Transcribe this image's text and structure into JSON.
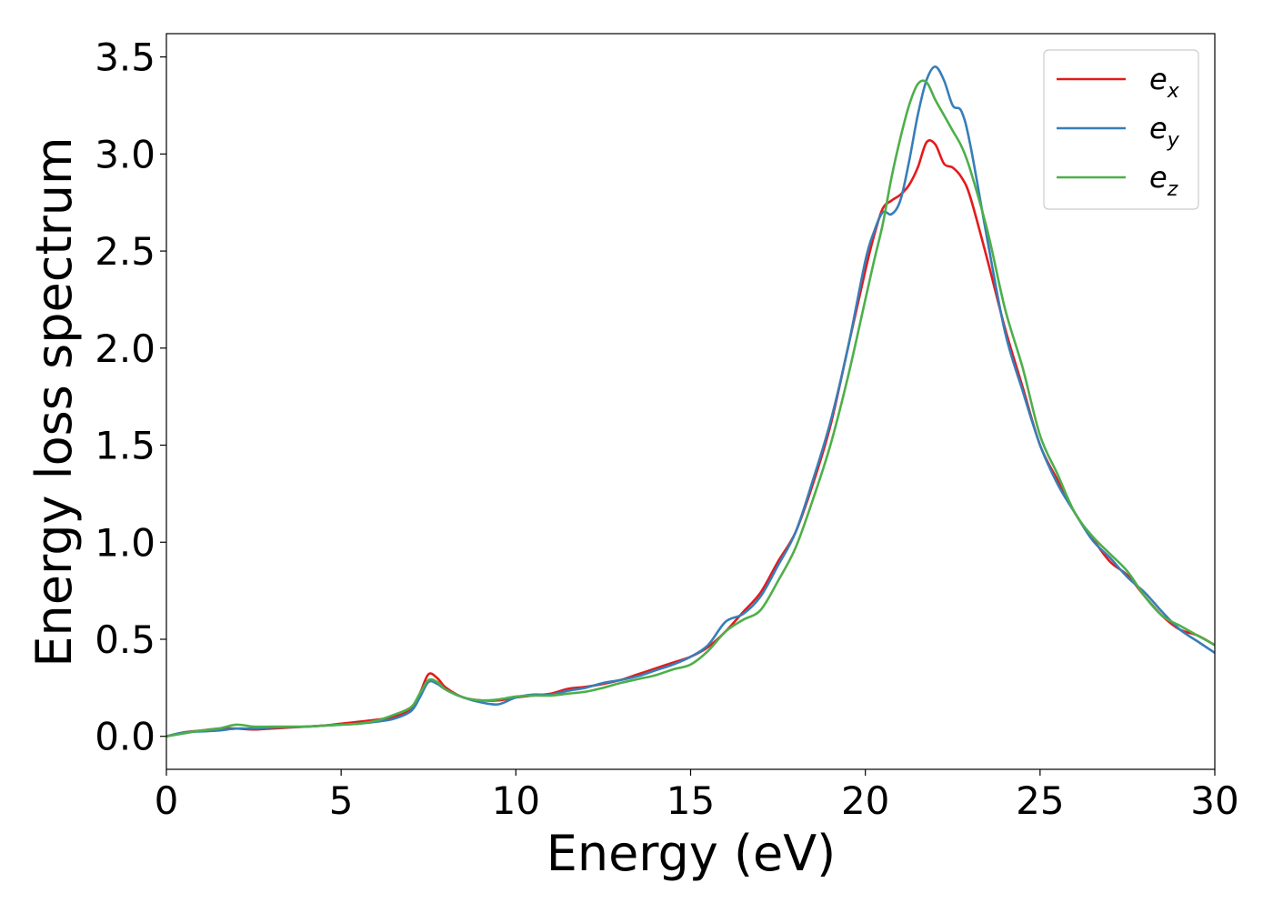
{
  "chart_data": {
    "type": "line",
    "title": "",
    "xlabel": "Energy (eV)",
    "ylabel": "Energy loss spectrum",
    "xlim": [
      0,
      30
    ],
    "ylim": [
      -0.17,
      3.62
    ],
    "xticks": [
      0,
      5,
      10,
      15,
      20,
      25,
      30
    ],
    "xtick_labels": [
      "0",
      "5",
      "10",
      "15",
      "20",
      "25",
      "30"
    ],
    "yticks": [
      0.0,
      0.5,
      1.0,
      1.5,
      2.0,
      2.5,
      3.0,
      3.5
    ],
    "ytick_labels": [
      "0.0",
      "0.5",
      "1.0",
      "1.5",
      "2.0",
      "2.5",
      "3.0",
      "3.5"
    ],
    "grid": false,
    "legend_position": "top-right",
    "series": [
      {
        "name": "e",
        "subscript": "x",
        "color": "#e41a1c",
        "x": [
          0,
          0.5,
          1,
          1.5,
          2,
          2.5,
          3,
          3.5,
          4,
          4.5,
          5,
          5.5,
          6,
          6.5,
          7,
          7.25,
          7.5,
          7.75,
          8,
          8.5,
          9,
          9.5,
          10,
          10.5,
          11,
          11.5,
          12,
          12.5,
          13,
          13.5,
          14,
          14.5,
          15,
          15.5,
          16,
          16.5,
          17,
          17.5,
          18,
          18.5,
          19,
          19.5,
          20,
          20.25,
          20.5,
          20.75,
          21,
          21.25,
          21.5,
          21.75,
          22,
          22.25,
          22.5,
          22.75,
          23,
          23.5,
          24,
          24.5,
          25,
          25.5,
          26,
          26.5,
          27,
          27.5,
          28,
          28.5,
          29,
          29.5,
          30
        ],
        "y": [
          0.0,
          0.02,
          0.03,
          0.04,
          0.04,
          0.035,
          0.04,
          0.045,
          0.05,
          0.055,
          0.065,
          0.075,
          0.085,
          0.1,
          0.14,
          0.22,
          0.32,
          0.3,
          0.25,
          0.2,
          0.185,
          0.185,
          0.2,
          0.21,
          0.22,
          0.245,
          0.255,
          0.27,
          0.29,
          0.32,
          0.35,
          0.38,
          0.41,
          0.46,
          0.54,
          0.64,
          0.74,
          0.9,
          1.05,
          1.3,
          1.6,
          2.0,
          2.4,
          2.58,
          2.72,
          2.76,
          2.79,
          2.84,
          2.93,
          3.06,
          3.05,
          2.95,
          2.93,
          2.88,
          2.78,
          2.45,
          2.1,
          1.8,
          1.5,
          1.32,
          1.15,
          1.02,
          0.9,
          0.83,
          0.72,
          0.62,
          0.55,
          0.52,
          0.47
        ]
      },
      {
        "name": "e",
        "subscript": "y",
        "color": "#377eb8",
        "x": [
          0,
          0.5,
          1,
          1.5,
          2,
          2.5,
          3,
          3.5,
          4,
          4.5,
          5,
          5.5,
          6,
          6.5,
          7,
          7.25,
          7.5,
          7.75,
          8,
          8.5,
          9,
          9.5,
          10,
          10.5,
          11,
          11.5,
          12,
          12.5,
          13,
          13.5,
          14,
          14.5,
          15,
          15.5,
          16,
          16.5,
          17,
          17.5,
          18,
          18.5,
          19,
          19.5,
          20,
          20.25,
          20.5,
          20.75,
          21,
          21.25,
          21.5,
          21.75,
          22,
          22.25,
          22.5,
          22.75,
          23,
          23.5,
          24,
          24.5,
          25,
          25.5,
          26,
          26.5,
          27,
          27.5,
          28,
          28.5,
          29,
          29.5,
          30
        ],
        "y": [
          0.0,
          0.02,
          0.025,
          0.03,
          0.04,
          0.04,
          0.045,
          0.048,
          0.05,
          0.055,
          0.06,
          0.065,
          0.075,
          0.09,
          0.13,
          0.2,
          0.28,
          0.27,
          0.24,
          0.2,
          0.175,
          0.165,
          0.2,
          0.215,
          0.215,
          0.235,
          0.25,
          0.275,
          0.29,
          0.31,
          0.34,
          0.37,
          0.41,
          0.47,
          0.59,
          0.63,
          0.72,
          0.88,
          1.05,
          1.32,
          1.62,
          2.0,
          2.45,
          2.6,
          2.7,
          2.69,
          2.76,
          2.96,
          3.2,
          3.38,
          3.45,
          3.38,
          3.25,
          3.22,
          3.05,
          2.55,
          2.08,
          1.78,
          1.5,
          1.3,
          1.15,
          1.01,
          0.92,
          0.82,
          0.74,
          0.64,
          0.55,
          0.49,
          0.43
        ]
      },
      {
        "name": "e",
        "subscript": "z",
        "color": "#4daf4a",
        "x": [
          0,
          0.5,
          1,
          1.5,
          2,
          2.5,
          3,
          3.5,
          4,
          4.5,
          5,
          5.5,
          6,
          6.5,
          7,
          7.25,
          7.5,
          7.75,
          8,
          8.5,
          9,
          9.5,
          10,
          10.5,
          11,
          11.5,
          12,
          12.5,
          13,
          13.5,
          14,
          14.5,
          15,
          15.5,
          16,
          16.5,
          17,
          17.5,
          18,
          18.5,
          19,
          19.5,
          20,
          20.25,
          20.5,
          20.75,
          21,
          21.25,
          21.5,
          21.75,
          22,
          22.25,
          22.5,
          22.75,
          23,
          23.5,
          24,
          24.5,
          25,
          25.5,
          26,
          26.5,
          27,
          27.5,
          28,
          28.5,
          29,
          29.5,
          30
        ],
        "y": [
          0.0,
          0.015,
          0.03,
          0.04,
          0.06,
          0.05,
          0.05,
          0.05,
          0.05,
          0.055,
          0.06,
          0.065,
          0.08,
          0.11,
          0.15,
          0.22,
          0.29,
          0.28,
          0.24,
          0.2,
          0.185,
          0.19,
          0.205,
          0.21,
          0.21,
          0.22,
          0.23,
          0.25,
          0.275,
          0.295,
          0.315,
          0.345,
          0.37,
          0.44,
          0.54,
          0.6,
          0.65,
          0.8,
          0.97,
          1.22,
          1.5,
          1.85,
          2.25,
          2.45,
          2.64,
          2.88,
          3.08,
          3.25,
          3.36,
          3.37,
          3.28,
          3.2,
          3.12,
          3.04,
          2.92,
          2.6,
          2.2,
          1.9,
          1.55,
          1.35,
          1.15,
          1.03,
          0.94,
          0.85,
          0.72,
          0.62,
          0.57,
          0.52,
          0.47
        ]
      }
    ]
  }
}
